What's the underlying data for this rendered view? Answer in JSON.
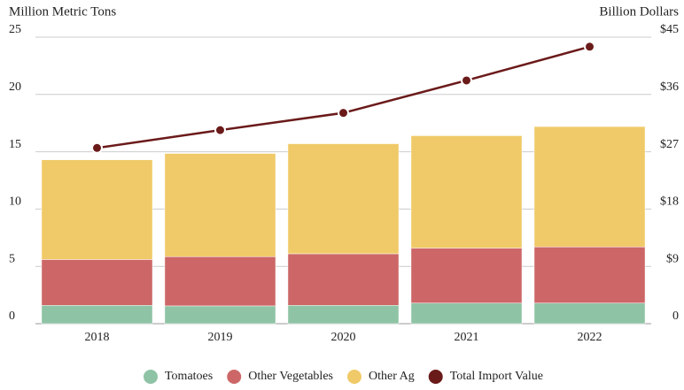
{
  "chart_data": {
    "type": "bar",
    "stacked": true,
    "y_label": "Million Metric Tons",
    "y2_label": "Billion Dollars",
    "categories": [
      "2018",
      "2019",
      "2020",
      "2021",
      "2022"
    ],
    "series": [
      {
        "name": "Tomatoes",
        "color": "#8fc3a5",
        "values": [
          1.6,
          1.55,
          1.6,
          1.8,
          1.8
        ]
      },
      {
        "name": "Other Vegetables",
        "color": "#cd6767",
        "values": [
          4.0,
          4.3,
          4.5,
          4.8,
          4.9
        ]
      },
      {
        "name": "Other Ag",
        "color": "#f0ca68",
        "values": [
          8.7,
          9.0,
          9.6,
          9.8,
          10.5
        ]
      },
      {
        "name": "Total Import Value",
        "color": "#6b1a1a",
        "type": "line",
        "axis": "y2",
        "values": [
          27.6,
          30.4,
          33.1,
          38.2,
          43.5
        ]
      }
    ],
    "ylim": [
      0,
      25
    ],
    "yticks": [
      0,
      5,
      10,
      15,
      20,
      25
    ],
    "y2lim": [
      0,
      45
    ],
    "y2ticks": [
      0,
      {
        "value": 9,
        "label": "$9"
      },
      {
        "value": 18,
        "label": "$18"
      },
      {
        "value": 27,
        "label": "$27"
      },
      {
        "value": 36,
        "label": "$36"
      },
      {
        "value": 45,
        "label": "$45"
      }
    ],
    "grid": true,
    "legend": "bottom"
  }
}
